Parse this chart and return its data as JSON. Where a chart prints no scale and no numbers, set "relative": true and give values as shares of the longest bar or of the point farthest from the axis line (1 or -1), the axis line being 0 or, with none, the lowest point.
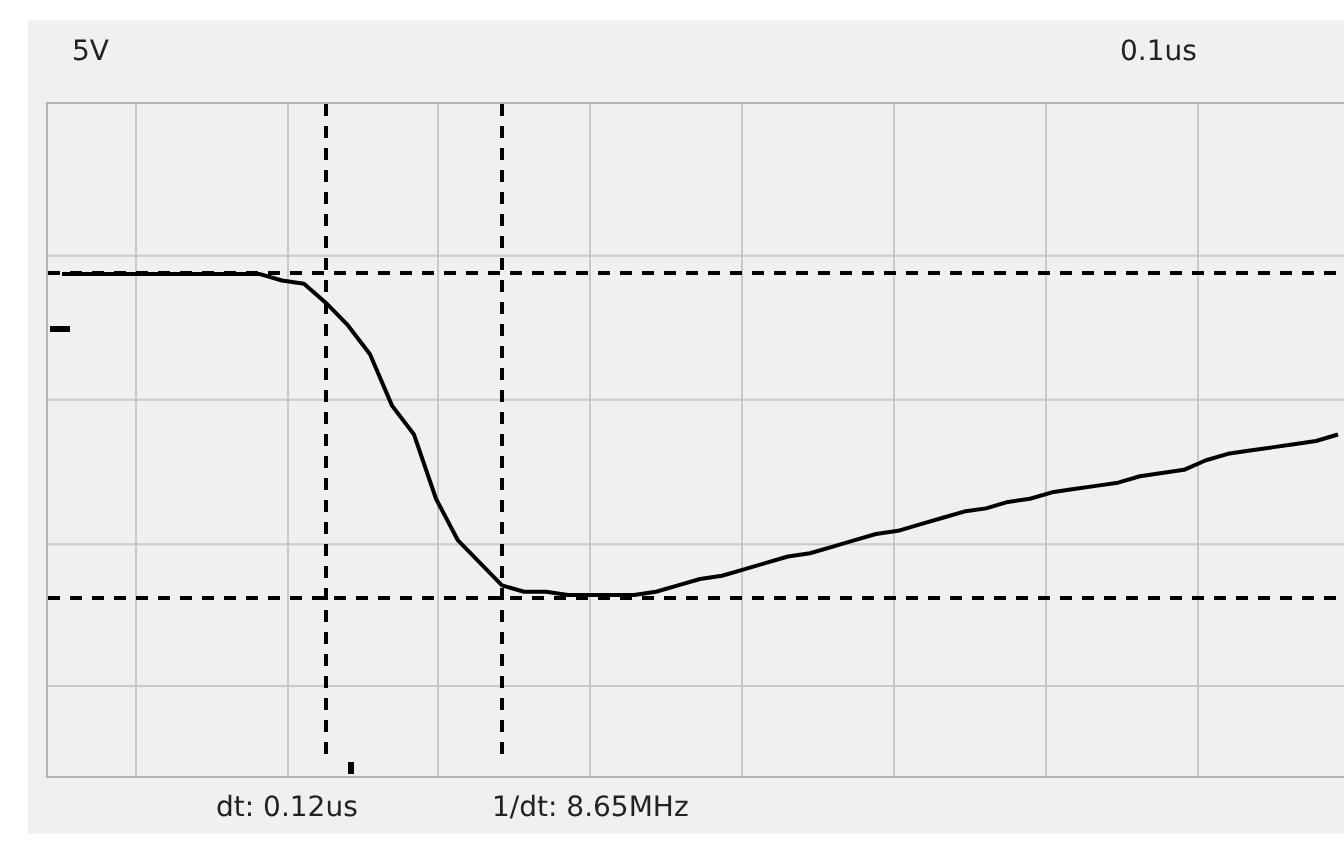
{
  "chart_data": {
    "type": "line",
    "relative": true,
    "categories": [
      null,
      null,
      null,
      null,
      null,
      null,
      null,
      null,
      null,
      null,
      null,
      null,
      null,
      null,
      null,
      null,
      null,
      null,
      null,
      null,
      null,
      null,
      null,
      null,
      null,
      null,
      null,
      null,
      null,
      null,
      null,
      null,
      null,
      null,
      null,
      null,
      null,
      null,
      null,
      null,
      null,
      null,
      null,
      null,
      null,
      null,
      null,
      null,
      null,
      null,
      null,
      null,
      null,
      null,
      null,
      null,
      null,
      null,
      null
    ],
    "series": [
      {
        "color": "#000000",
        "values": [
          1.0,
          1.0,
          1.0,
          1.0,
          1.0,
          1.0,
          1.0,
          1.0,
          1.0,
          1.0,
          0.98,
          0.97,
          0.91,
          0.84,
          0.75,
          0.59,
          0.5,
          0.3,
          0.17,
          0.1,
          0.03,
          0.01,
          0.01,
          0,
          0,
          0,
          0,
          0.01,
          0.03,
          0.05,
          0.06,
          0.08,
          0.1,
          0.12,
          0.13,
          0.15,
          0.17,
          0.19,
          0.2,
          0.22,
          0.24,
          0.26,
          0.27,
          0.29,
          0.3,
          0.32,
          0.33,
          0.34,
          0.35,
          0.37,
          0.38,
          0.39,
          0.42,
          0.44,
          0.45,
          0.46,
          0.47,
          0.48,
          0.5
        ]
      }
    ],
    "grid": true,
    "marker": "none",
    "line_style": "solid",
    "annotations": [
      "5V",
      "0.1us",
      "dt: 0.12us",
      "1/dt: 8.65MHz"
    ]
  }
}
